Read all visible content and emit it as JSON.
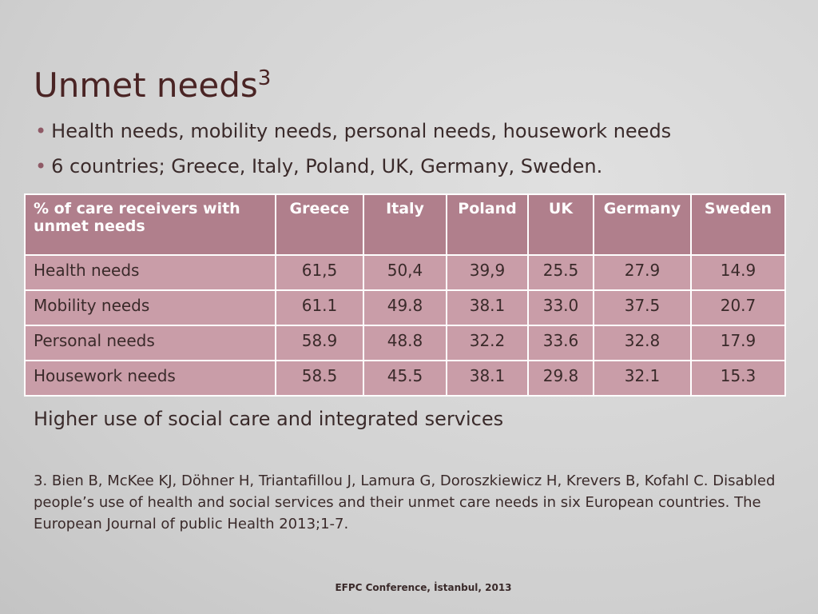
{
  "title": "Unmet needs",
  "title_sup": "3",
  "bullets": [
    "Health needs, mobility needs, personal needs, housework needs",
    "6 countries; Greece, Italy, Poland, UK, Germany, Sweden."
  ],
  "table": {
    "header": [
      "% of care receivers with unmet needs",
      "Greece",
      "Italy",
      "Poland",
      "UK",
      "Germany",
      "Sweden"
    ],
    "rows": [
      [
        "Health needs",
        "61,5",
        "50,4",
        "39,9",
        "25.5",
        "27.9",
        "14.9"
      ],
      [
        "Mobility needs",
        "61.1",
        "49.8",
        "38.1",
        "33.0",
        "37.5",
        "20.7"
      ],
      [
        "Personal needs",
        "58.9",
        "48.8",
        "32.2",
        "33.6",
        "32.8",
        "17.9"
      ],
      [
        "Housework needs",
        "58.5",
        "45.5",
        "38.1",
        "29.8",
        "32.1",
        "15.3"
      ]
    ]
  },
  "subheading": "Higher use of social care  and integrated services",
  "reference": "3. Bien B, McKee KJ, Döhner H, Triantafillou J, Lamura G, Doroszkiewicz H, Krevers B, Kofahl C. Disabled people’s use of health and social services and their unmet care needs in six European countries. The European Journal of public Health 2013;1-7.",
  "footer": "EFPC Conference, İstanbul, 2013"
}
